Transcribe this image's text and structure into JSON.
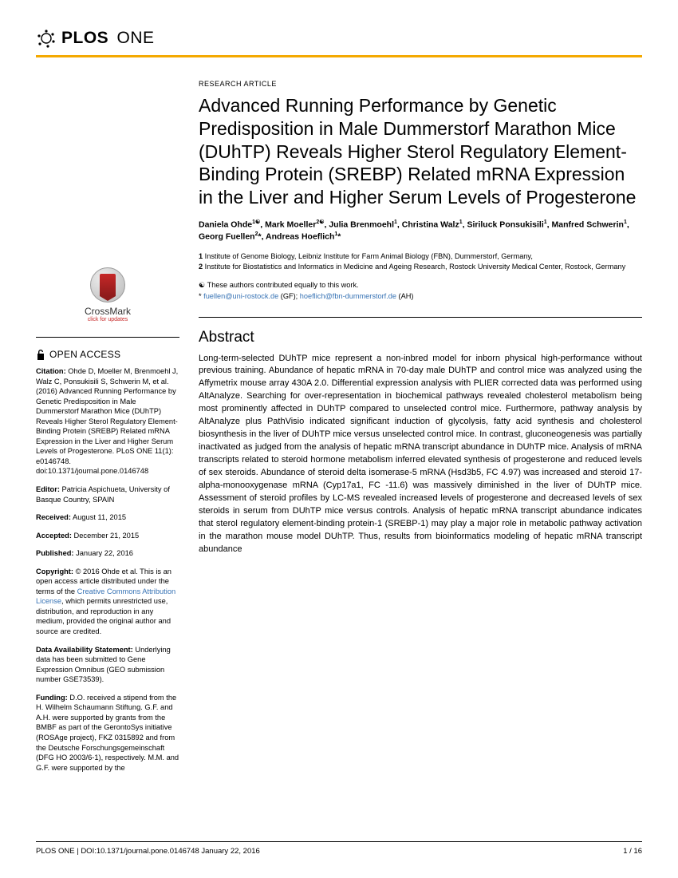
{
  "journal": {
    "brand_a": "PLOS",
    "brand_b": "ONE"
  },
  "article_type": "RESEARCH ARTICLE",
  "title": "Advanced Running Performance by Genetic Predisposition in Male Dummerstorf Marathon Mice (DUhTP) Reveals Higher Sterol Regulatory Element-Binding Protein (SREBP) Related mRNA Expression in the Liver and Higher Serum Levels of Progesterone",
  "authors_html": "Daniela Ohde<sup>1☯</sup>, Mark Moeller<sup>2☯</sup>, Julia Brenmoehl<sup>1</sup>, Christina Walz<sup>1</sup>, Siriluck Ponsukisili<sup>1</sup>, Manfred Schwerin<sup>1</sup>, Georg Fuellen<sup>2</sup>*, Andreas Hoeflich<sup>1</sup>*",
  "affiliations": [
    {
      "n": "1",
      "text": "Institute of Genome Biology, Leibniz Institute for Farm Animal Biology (FBN), Dummerstorf, Germany,"
    },
    {
      "n": "2",
      "text": "Institute for Biostatistics and Informatics in Medicine and Ageing Research, Rostock University Medical Center, Rostock, Germany"
    }
  ],
  "contrib": {
    "equal": "☯ These authors contributed equally to this work.",
    "corr_prefix": "* ",
    "email1": "fuellen@uni-rostock.de",
    "gf": " (GF); ",
    "email2": "hoeflich@fbn-dummerstorf.de",
    "ah": " (AH)"
  },
  "abstract": {
    "heading": "Abstract",
    "text": "Long-term-selected DUhTP mice represent a non-inbred model for inborn physical high-performance without previous training. Abundance of hepatic mRNA in 70-day male DUhTP and control mice was analyzed using the Affymetrix mouse array 430A 2.0. Differential expression analysis with PLIER corrected data was performed using AltAnalyze. Searching for over-representation in biochemical pathways revealed cholesterol metabolism being most prominently affected in DUhTP compared to unselected control mice. Furthermore, pathway analysis by AltAnalyze plus PathVisio indicated significant induction of glycolysis, fatty acid synthesis and cholesterol biosynthesis in the liver of DUhTP mice versus unselected control mice. In contrast, gluconeogenesis was partially inactivated as judged from the analysis of hepatic mRNA transcript abundance in DUhTP mice. Analysis of mRNA transcripts related to steroid hormone metabolism inferred elevated synthesis of progesterone and reduced levels of sex steroids. Abundance of steroid delta isomerase-5 mRNA (Hsd3b5, FC 4.97) was increased and steroid 17-alpha-monooxygenase mRNA (Cyp17a1, FC -11.6) was massively diminished in the liver of DUhTP mice. Assessment of steroid profiles by LC-MS revealed increased levels of progesterone and decreased levels of sex steroids in serum from DUhTP mice versus controls. Analysis of hepatic mRNA transcript abundance indicates that sterol regulatory element-binding protein-1 (SREBP-1) may play a major role in metabolic pathway activation in the marathon mouse model DUhTP. Thus, results from bioinformatics modeling of hepatic mRNA transcript abundance"
  },
  "crossmark": {
    "label": "CrossMark",
    "sub": "click for updates"
  },
  "open_access": "OPEN ACCESS",
  "sidebar": {
    "citation_label": "Citation:",
    "citation": " Ohde D, Moeller M, Brenmoehl J, Walz C, Ponsukisili S, Schwerin M, et al. (2016) Advanced Running Performance by Genetic Predisposition in Male Dummerstorf Marathon Mice (DUhTP) Reveals Higher Sterol Regulatory Element-Binding Protein (SREBP) Related mRNA Expression in the Liver and Higher Serum Levels of Progesterone. PLoS ONE 11(1): e0146748. doi:10.1371/journal.pone.0146748",
    "editor_label": "Editor:",
    "editor": " Patricia Aspichueta, University of Basque Country, SPAIN",
    "received_label": "Received:",
    "received": " August 11, 2015",
    "accepted_label": "Accepted:",
    "accepted": " December 21, 2015",
    "published_label": "Published:",
    "published": " January 22, 2016",
    "copyright_label": "Copyright:",
    "copyright_a": " © 2016 Ohde et al. This is an open access article distributed under the terms of the ",
    "cc_link": "Creative Commons Attribution License",
    "copyright_b": ", which permits unrestricted use, distribution, and reproduction in any medium, provided the original author and source are credited.",
    "data_label": "Data Availability Statement:",
    "data": " Underlying data has been submitted to Gene Expression Omnibus (GEO submission number GSE73539).",
    "funding_label": "Funding:",
    "funding": " D.O. received a stipend from the H. Wilhelm Schaumann Stiftung. G.F. and A.H. were supported by grants from the BMBF as part of the GerontoSys initiative (ROSAge project), FKZ 0315892 and from the Deutsche Forschungsgemeinschaft (DFG HO 2003/6-1), respectively. M.M. and G.F. were supported by the"
  },
  "footer": {
    "left": "PLOS ONE | DOI:10.1371/journal.pone.0146748    January 22, 2016",
    "right": "1 / 16"
  },
  "colors": {
    "accent": "#f4a900",
    "link": "#3773b5"
  }
}
